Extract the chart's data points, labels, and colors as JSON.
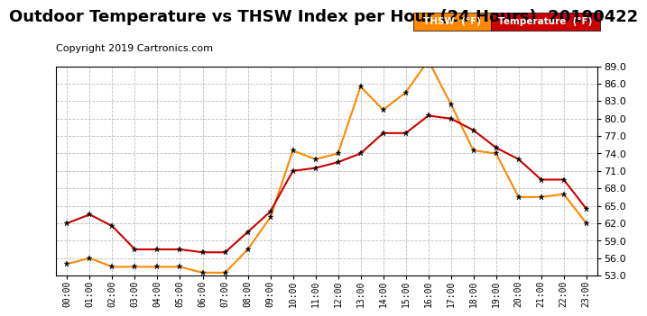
{
  "title": "Outdoor Temperature vs THSW Index per Hour (24 Hours)  20190422",
  "copyright": "Copyright 2019 Cartronics.com",
  "x_labels": [
    "00:00",
    "01:00",
    "02:00",
    "03:00",
    "04:00",
    "05:00",
    "06:00",
    "07:00",
    "08:00",
    "09:00",
    "10:00",
    "11:00",
    "12:00",
    "13:00",
    "14:00",
    "15:00",
    "16:00",
    "17:00",
    "18:00",
    "19:00",
    "20:00",
    "21:00",
    "22:00",
    "23:00"
  ],
  "temperature": [
    62.0,
    63.5,
    61.5,
    57.5,
    57.5,
    57.5,
    57.0,
    57.0,
    60.5,
    64.0,
    71.0,
    71.5,
    72.5,
    74.0,
    77.5,
    77.5,
    80.5,
    80.0,
    78.0,
    75.0,
    73.0,
    69.5,
    69.5,
    64.5
  ],
  "thsw": [
    55.0,
    56.0,
    54.5,
    54.5,
    54.5,
    54.5,
    53.5,
    53.5,
    57.5,
    63.0,
    74.5,
    73.0,
    74.0,
    85.5,
    81.5,
    84.5,
    90.0,
    82.5,
    74.5,
    74.0,
    66.5,
    66.5,
    67.0,
    62.0
  ],
  "temp_color": "#cc0000",
  "thsw_color": "#ff8800",
  "ylim_min": 53.0,
  "ylim_max": 89.0,
  "yticks": [
    53.0,
    56.0,
    59.0,
    62.0,
    65.0,
    68.0,
    71.0,
    74.0,
    77.0,
    80.0,
    83.0,
    86.0,
    89.0
  ],
  "bg_color": "#ffffff",
  "grid_color": "#bbbbbb",
  "legend_thsw_bg": "#ff8800",
  "legend_temp_bg": "#cc0000",
  "legend_text_color": "#ffffff",
  "title_fontsize": 13,
  "copyright_fontsize": 8
}
